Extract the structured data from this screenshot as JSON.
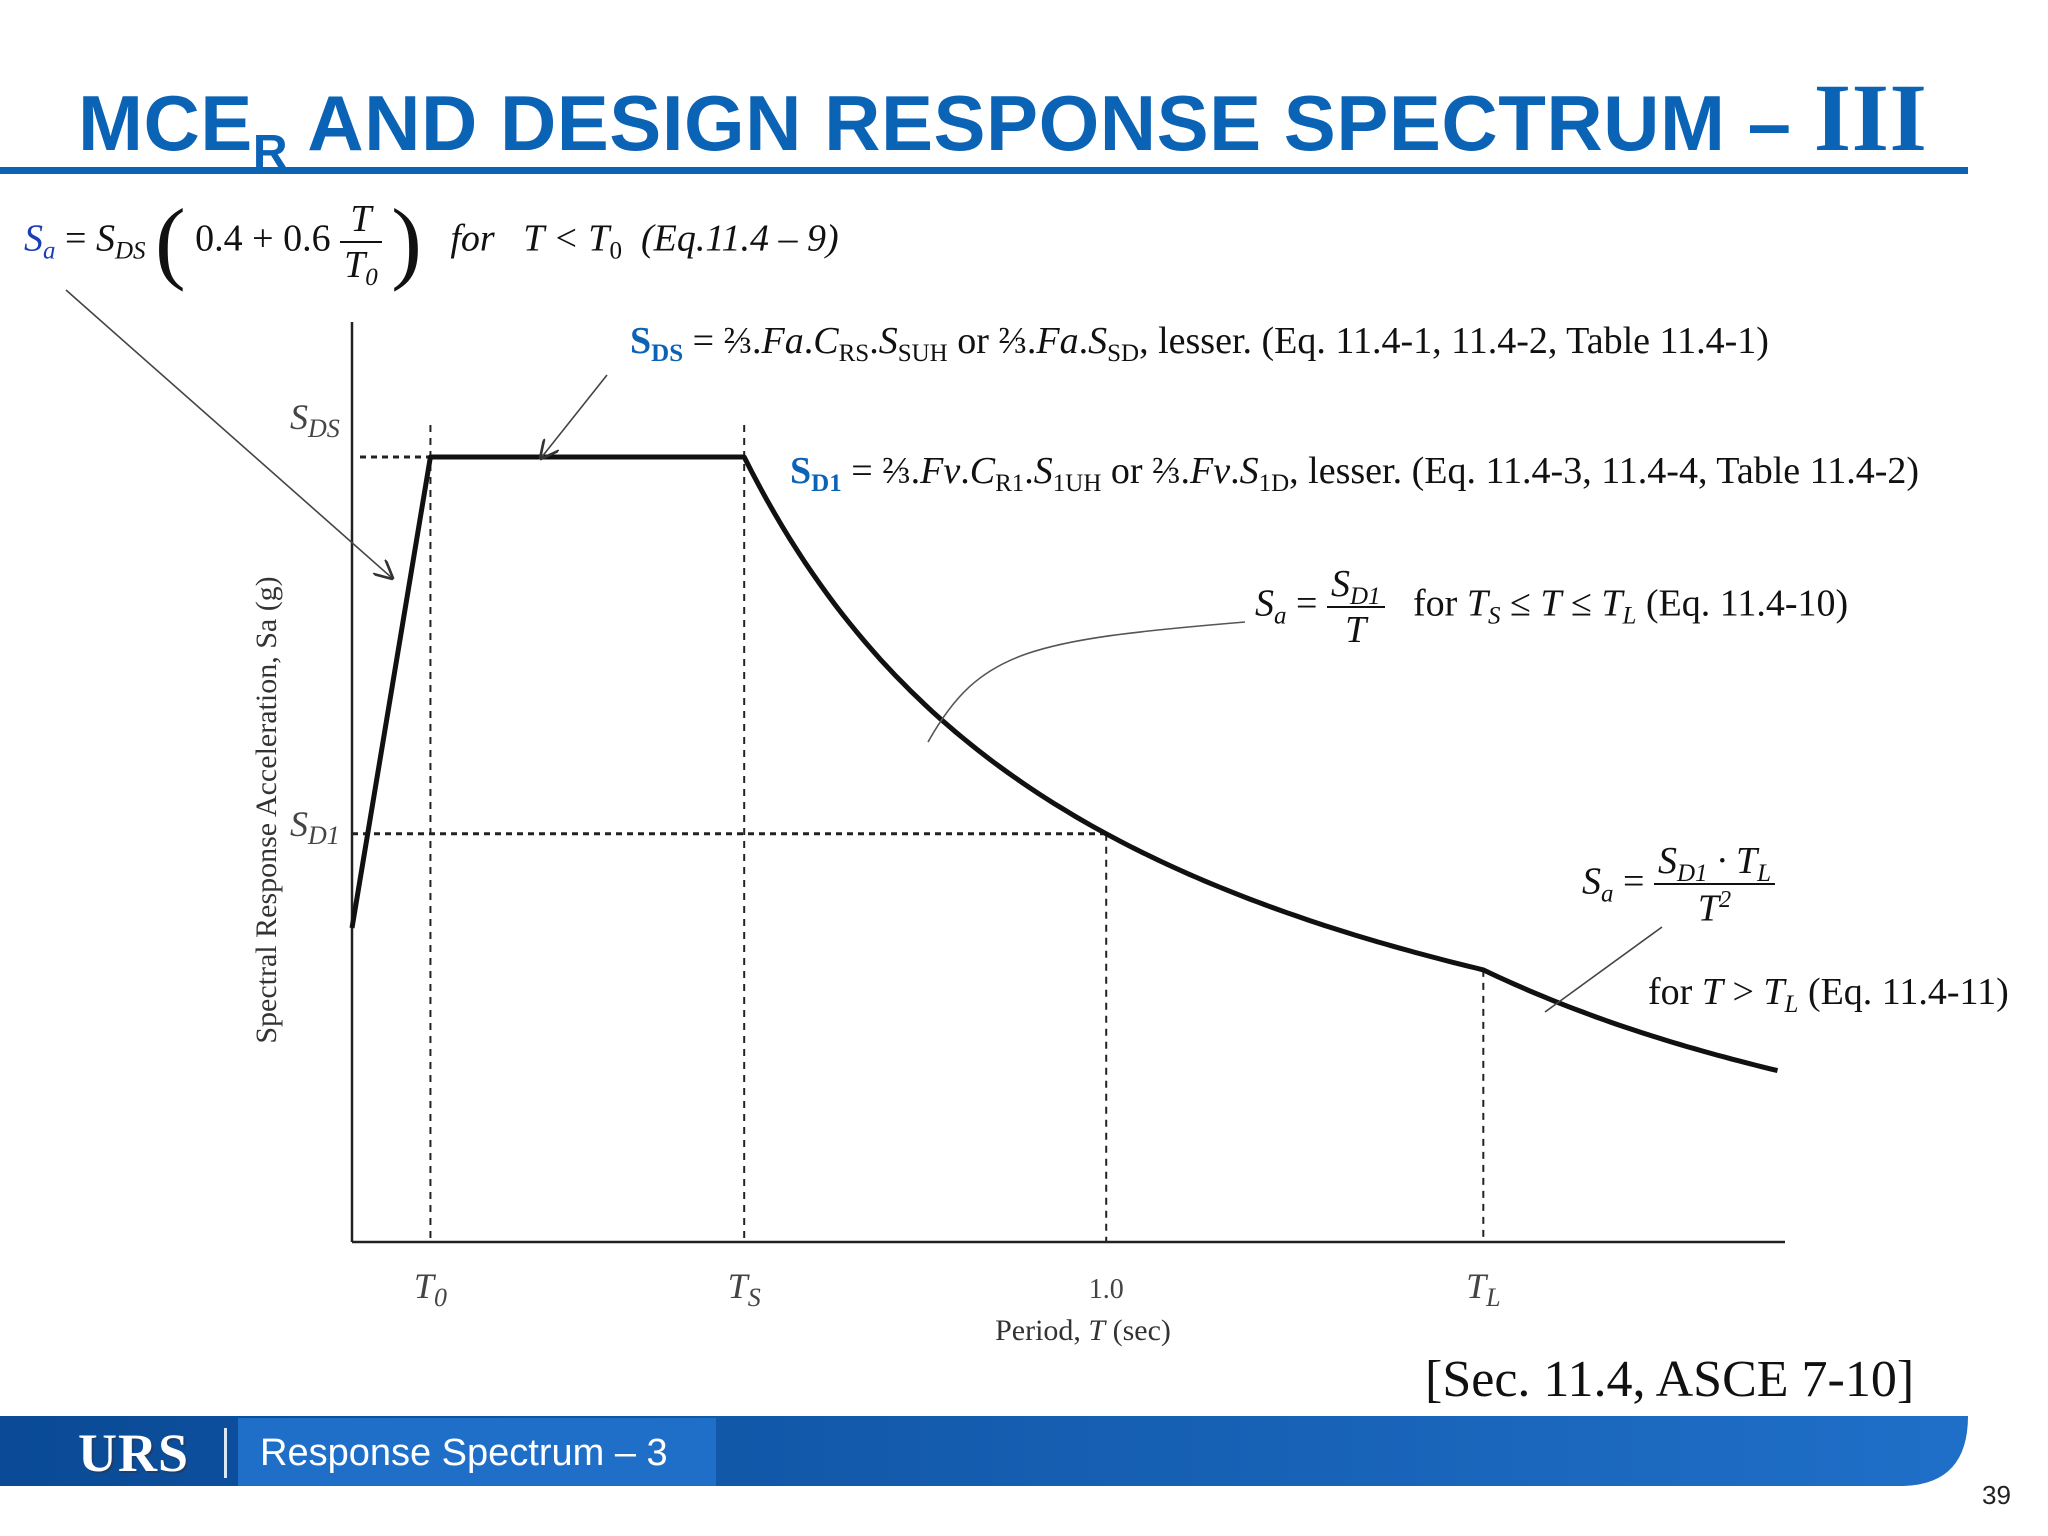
{
  "slide": {
    "title_prefix": "MCE",
    "title_sub": "R",
    "title_main": " AND DESIGN RESPONSE SPECTRUM – ",
    "title_roman": "III",
    "citation": "[Sec. 11.4, ASCE 7-10]",
    "page_number": "39"
  },
  "equation_ramp": {
    "lhs": "S",
    "lhs_sub": "a",
    "equals": " = ",
    "sds": "S",
    "sds_sub": "DS",
    "constant": "0.4 + 0.6",
    "frac_num": "T",
    "frac_den": "T",
    "frac_den_sub": "0",
    "for_word": "for",
    "condition": "T < T",
    "condition_sub": "0",
    "ref": "(Eq.11.4 – 9)"
  },
  "sds_note": {
    "sym": "S",
    "sym_sub": "DS",
    "p1": " = ⅔.",
    "fa1": "Fa",
    "p2": ".",
    "c": "C",
    "c_sub": "RS",
    "p3": ".",
    "s": "S",
    "s_sub": "SUH",
    "p4": " or ⅔.",
    "fa2": "Fa",
    "p5": ".",
    "s2": "S",
    "s2_sub": "SD",
    "p6": ", lesser. (Eq. 11.4-1, 11.4-2, Table 11.4-1)"
  },
  "sd1_note": {
    "sym": "S",
    "sym_sub": "D1",
    "p1": " = ⅔.",
    "fv1": "Fv",
    "p2": ".",
    "c": "C",
    "c_sub": "R1",
    "p3": ".",
    "s": "S",
    "s_sub": "1UH",
    "p4": " or ⅔.",
    "fv2": "Fv",
    "p5": ".",
    "s2": "S",
    "s2_sub": "1D",
    "p6": ", lesser. (Eq. 11.4-3, 11.4-4, Table 11.4-2)"
  },
  "equation_decay": {
    "lhs": "S",
    "lhs_sub": "a",
    "equals": " = ",
    "num": "S",
    "num_sub": "D1",
    "den": "T",
    "for_word": "for ",
    "t1": "T",
    "t1_sub": "S",
    "op1": " ≤ ",
    "t2": "T",
    "op2": " ≤ ",
    "t3": "T",
    "t3_sub": "L",
    "ref": " (Eq. 11.4-10)"
  },
  "equation_long": {
    "lhs": "S",
    "lhs_sub": "a",
    "equals": " = ",
    "num_a": "S",
    "num_a_sub": "D1",
    "dot": " · ",
    "num_b": "T",
    "num_b_sub": "L",
    "den": "T",
    "den_sup": "2",
    "for_word": "for ",
    "t1": "T",
    "op": " > ",
    "t2": "T",
    "t2_sub": "L",
    "ref": " (Eq. 11.4-11)"
  },
  "chart_data": {
    "type": "line",
    "ylabel": "Spectral Response Acceleration, Sa (g)",
    "xlabel": "Period, T (sec)",
    "y_ticks": [
      {
        "label": "S",
        "sub": "DS"
      },
      {
        "label": "S",
        "sub": "D1"
      }
    ],
    "x_ticks": [
      {
        "label": "T",
        "sub": "0"
      },
      {
        "label": "T",
        "sub": "S"
      },
      {
        "label": "1.0",
        "sub": ""
      },
      {
        "label": "T",
        "sub": "L"
      }
    ],
    "values": {
      "SDS": 1.0,
      "SD1": 0.52,
      "T0": 0.104,
      "TS": 0.52,
      "T_1": 1.0,
      "TL": 1.5
    },
    "x_range": [
      0,
      1.9
    ],
    "y_range": [
      0,
      1.2
    ]
  },
  "footer": {
    "logo": "URS",
    "label": "Response Spectrum – 3"
  },
  "colors": {
    "title_blue": "#0b63b6",
    "footer_dark": "#0a4a96",
    "footer_light": "#1f6fc8"
  }
}
